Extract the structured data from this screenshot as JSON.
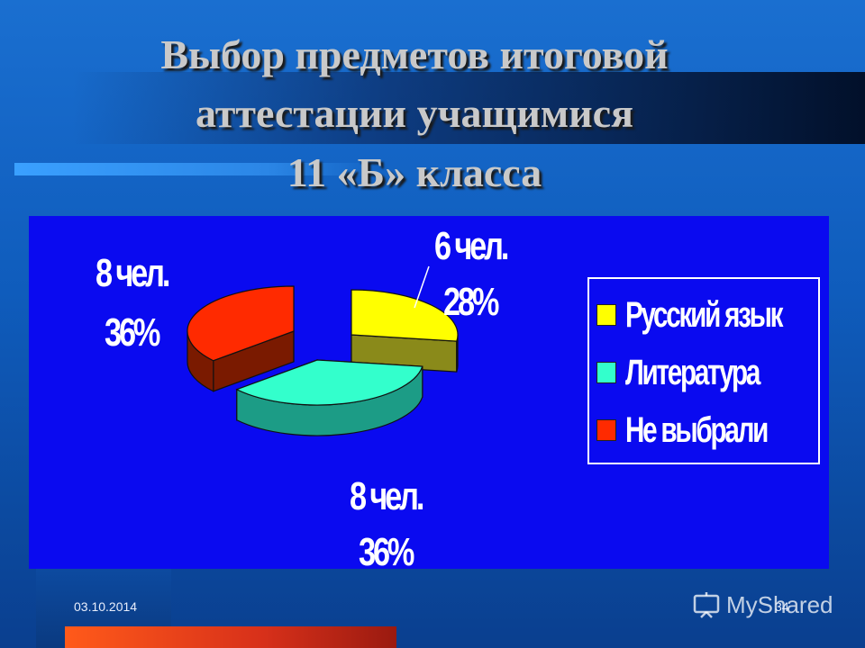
{
  "slide": {
    "title_lines": [
      "Выбор предметов итоговой",
      "аттестации учащимися",
      "11 «Б» класса"
    ],
    "footer_date": "03.10.2014",
    "page_number": "34",
    "watermark": "MyShared"
  },
  "chart_data": {
    "type": "pie",
    "title": "",
    "categories": [
      "Русский язык",
      "Литература",
      "Не выбрали"
    ],
    "values": [
      6,
      8,
      8
    ],
    "percentages": [
      28,
      36,
      36
    ],
    "count_labels": [
      "6 чел.",
      "8 чел.",
      "8 чел."
    ],
    "percent_labels": [
      "28%",
      "36%",
      "36%"
    ],
    "colors": [
      "#ffff00",
      "#33ffcc",
      "#ff2a00"
    ],
    "side_colors": [
      "#8a8a1a",
      "#1c9c86",
      "#7a1a00"
    ],
    "legend_placement": "right",
    "style": "3d-exploded"
  }
}
